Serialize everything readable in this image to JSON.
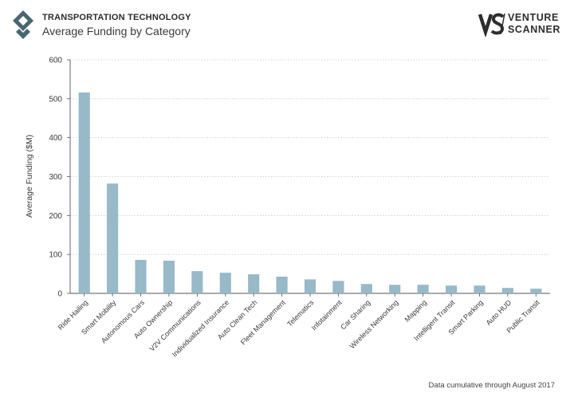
{
  "header": {
    "kicker": "TRANSPORTATION TECHNOLOGY",
    "title": "Average Funding by Category",
    "brand_line1": "VENTURE",
    "brand_line2": "SCANNER"
  },
  "footnote": "Data cumulative through August 2017",
  "colors": {
    "bar": "#98b9c7",
    "grid": "#c9c9c9",
    "axis": "#555555",
    "text": "#3a3a3a",
    "logo": "#4a6670"
  },
  "chart_data": {
    "type": "bar",
    "title": "Average Funding by Category",
    "xlabel": "",
    "ylabel": "Average Funding ($M)",
    "ylim": [
      0,
      600
    ],
    "yticks": [
      0,
      100,
      200,
      300,
      400,
      500,
      600
    ],
    "grid": "horizontal dotted",
    "categories": [
      "Ride Hailing",
      "Smart Mobility",
      "Autonomous Cars",
      "Auto Ownership",
      "V2V Communications",
      "Individualized Insurance",
      "Auto Clean Tech",
      "Fleet Management",
      "Telematics",
      "Infotainment",
      "Car Sharing",
      "Wireless Networking",
      "Mapping",
      "Intelligent Transit",
      "Smart Parking",
      "Auto HUD",
      "Public Transit"
    ],
    "values": [
      516,
      282,
      86,
      84,
      57,
      53,
      49,
      43,
      36,
      32,
      24,
      22,
      22,
      20,
      20,
      14,
      12
    ]
  }
}
